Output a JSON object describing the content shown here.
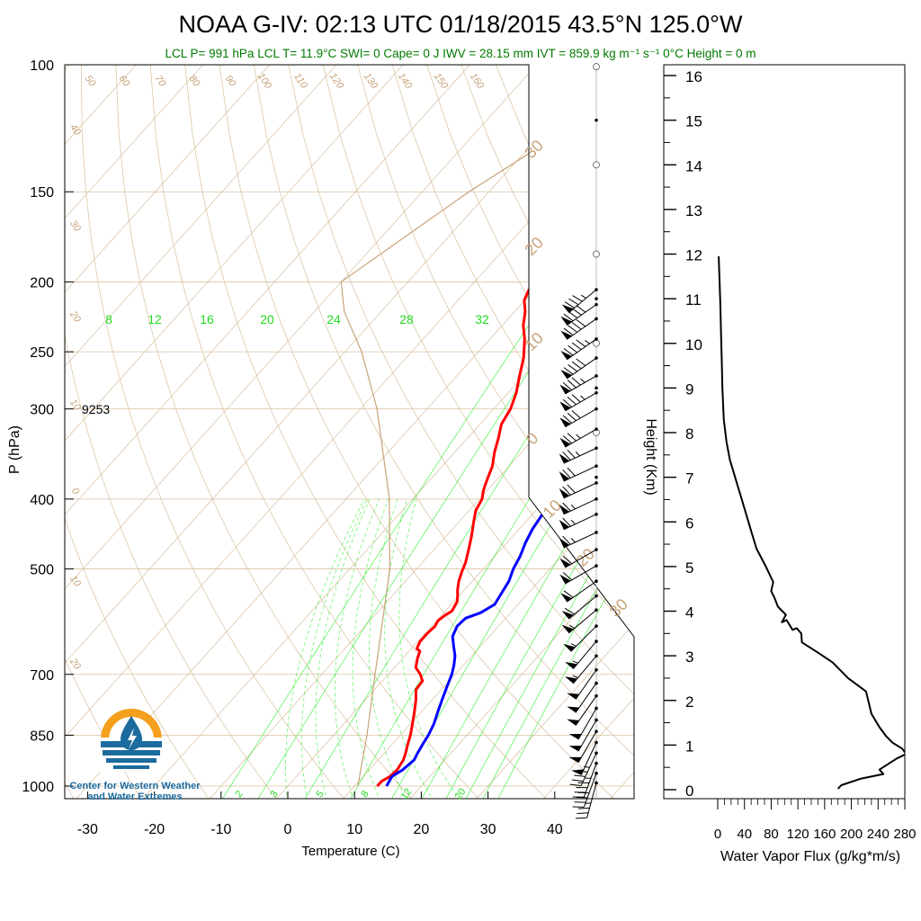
{
  "title": "NOAA G-IV: 02:13 UTC 01/18/2015  43.5°N 125.0°W",
  "subtitle": "LCL P= 991 hPa  LCL T= 11.9°C  SWI= 0  Cape= 0 J  IWV = 28.15 mm  IVT = 859.9 kg m⁻¹ s⁻¹  0°C Height = 0 m",
  "station_label": "9253",
  "logo": {
    "line1": "Center for Western Weather",
    "line2": "and Water Extremes"
  },
  "colors": {
    "temperature": "#ff0000",
    "dewpoint": "#0000ff",
    "mixing_ratio": "#00ee00",
    "adiabats": "#d2b48c",
    "subtitle": "#007a00",
    "logo_orange": "#f4a01c",
    "logo_blue": "#1c6b9e"
  },
  "chart_data": [
    {
      "type": "line",
      "kind": "skew-T log-p",
      "xlabel": "Temperature (C)",
      "ylabel": "P (hPa)",
      "x_ticks": [
        -30,
        -20,
        -10,
        0,
        10,
        20,
        30,
        40
      ],
      "y_ticks": [
        100,
        150,
        200,
        250,
        300,
        400,
        500,
        700,
        850,
        1000
      ],
      "y_scale": "log",
      "ylim": [
        1050,
        100
      ],
      "mixing_ratio_labels_upper": [
        "8",
        "12",
        "16",
        "20",
        "24",
        "28",
        "32"
      ],
      "mixing_ratio_labels_lower": [
        "2",
        "3",
        "5",
        "8",
        "12",
        "20"
      ],
      "dry_adiabat_labels": [
        "50",
        "60",
        "70",
        "80",
        "90",
        "100",
        "110",
        "120",
        "130",
        "140",
        "150",
        "160"
      ],
      "left_labels": [
        "40",
        "30",
        "20",
        "10",
        "0",
        "10",
        "20"
      ],
      "right_labels": [
        "30",
        "20",
        "10",
        "0",
        "10",
        "20",
        "30"
      ],
      "series": [
        {
          "name": "Temperature",
          "p": [
            1000,
            985,
            970,
            950,
            920,
            900,
            880,
            850,
            820,
            790,
            760,
            735,
            715,
            700,
            685,
            665,
            650,
            645,
            630,
            615,
            600,
            590,
            580,
            572,
            565,
            555,
            545,
            535,
            520,
            505,
            490,
            470,
            450,
            430,
            415,
            400,
            390,
            380,
            360,
            345,
            330,
            315,
            300,
            285,
            270,
            255,
            240,
            230,
            220,
            212,
            205,
            200,
            195
          ],
          "t": [
            13.4,
            13.4,
            14.0,
            14.2,
            13.8,
            13.2,
            12.5,
            11.5,
            10.3,
            9.0,
            7.6,
            6.2,
            6.0,
            4.8,
            3.2,
            2.2,
            1.6,
            0.8,
            0.3,
            0.3,
            0.5,
            0.2,
            0.5,
            1.0,
            0.8,
            0.5,
            -0.2,
            -1.0,
            -2.0,
            -2.8,
            -3.5,
            -4.8,
            -6.2,
            -7.8,
            -9.0,
            -9.6,
            -10.5,
            -11.2,
            -12.5,
            -14.0,
            -15.3,
            -16.8,
            -17.5,
            -18.8,
            -20.6,
            -22.4,
            -24.8,
            -26.8,
            -28.4,
            -30.1,
            -30.8,
            -30.0,
            -27.0
          ]
        },
        {
          "name": "Dew point",
          "p": [
            1000,
            970,
            950,
            920,
            900,
            870,
            850,
            820,
            790,
            760,
            730,
            700,
            680,
            660,
            640,
            620,
            600,
            585,
            575,
            560,
            540,
            520,
            500,
            480,
            460,
            440,
            420,
            400,
            370,
            340,
            310,
            290,
            270,
            255,
            240,
            230,
            220,
            210,
            205,
            200,
            195
          ],
          "t": [
            14.8,
            14.3,
            15.0,
            15.4,
            15.0,
            14.5,
            14.2,
            13.5,
            12.5,
            11.5,
            10.5,
            9.5,
            8.6,
            7.5,
            6.0,
            4.5,
            3.8,
            4.0,
            5.5,
            6.5,
            6.0,
            5.5,
            4.5,
            3.8,
            2.8,
            2.0,
            1.5,
            0.8,
            -1.5,
            -3.5,
            -5.0,
            -6.8,
            -8.4,
            -10.0,
            -11.3,
            -11.6,
            -11.4,
            -11.0,
            -10.0,
            -8.8,
            -7.3
          ]
        },
        {
          "name": "Parcel",
          "p": [
            1000,
            850,
            700,
            500,
            400,
            300,
            250,
            220,
            200,
            150,
            120,
            100
          ],
          "t": [
            10.5,
            5.0,
            -2.0,
            -14.0,
            -23.5,
            -37.5,
            -47.5,
            -55.5,
            -60.0,
            -53.0,
            -46.0,
            -41.0
          ]
        }
      ]
    },
    {
      "type": "line",
      "kind": "wind profile",
      "ylabel": "Height (Km)",
      "y_ticks": [
        "0",
        "1",
        "2",
        "3",
        "4",
        "5",
        "6",
        "7",
        "8",
        "9",
        "10",
        "11",
        "12",
        "13",
        "14",
        "15",
        "16"
      ],
      "ylim": [
        -0.3,
        16.3
      ],
      "upper_marks_km": [
        16.2,
        15.0,
        14.0,
        12.0,
        11.0,
        10.0,
        9.0,
        8.0,
        7.0
      ],
      "barbs": [
        {
          "p": 205,
          "dir": 230,
          "speed": 85
        },
        {
          "p": 215,
          "dir": 235,
          "speed": 90
        },
        {
          "p": 225,
          "dir": 235,
          "speed": 90
        },
        {
          "p": 240,
          "dir": 235,
          "speed": 95
        },
        {
          "p": 255,
          "dir": 235,
          "speed": 90
        },
        {
          "p": 270,
          "dir": 240,
          "speed": 85
        },
        {
          "p": 285,
          "dir": 240,
          "speed": 85
        },
        {
          "p": 300,
          "dir": 240,
          "speed": 80
        },
        {
          "p": 320,
          "dir": 240,
          "speed": 75
        },
        {
          "p": 340,
          "dir": 245,
          "speed": 75
        },
        {
          "p": 360,
          "dir": 245,
          "speed": 70
        },
        {
          "p": 380,
          "dir": 245,
          "speed": 70
        },
        {
          "p": 400,
          "dir": 245,
          "speed": 65
        },
        {
          "p": 420,
          "dir": 245,
          "speed": 65
        },
        {
          "p": 445,
          "dir": 245,
          "speed": 65
        },
        {
          "p": 470,
          "dir": 240,
          "speed": 60
        },
        {
          "p": 495,
          "dir": 240,
          "speed": 60
        },
        {
          "p": 520,
          "dir": 235,
          "speed": 60
        },
        {
          "p": 545,
          "dir": 230,
          "speed": 60
        },
        {
          "p": 570,
          "dir": 230,
          "speed": 55
        },
        {
          "p": 600,
          "dir": 225,
          "speed": 55
        },
        {
          "p": 630,
          "dir": 220,
          "speed": 55
        },
        {
          "p": 660,
          "dir": 220,
          "speed": 55
        },
        {
          "p": 690,
          "dir": 215,
          "speed": 50
        },
        {
          "p": 720,
          "dir": 215,
          "speed": 50
        },
        {
          "p": 750,
          "dir": 215,
          "speed": 50
        },
        {
          "p": 780,
          "dir": 210,
          "speed": 50
        },
        {
          "p": 810,
          "dir": 210,
          "speed": 50
        },
        {
          "p": 840,
          "dir": 210,
          "speed": 50
        },
        {
          "p": 870,
          "dir": 205,
          "speed": 50
        },
        {
          "p": 900,
          "dir": 205,
          "speed": 45
        },
        {
          "p": 930,
          "dir": 200,
          "speed": 45
        },
        {
          "p": 960,
          "dir": 200,
          "speed": 40
        },
        {
          "p": 990,
          "dir": 195,
          "speed": 35
        }
      ]
    },
    {
      "type": "line",
      "kind": "vertical profile",
      "xlabel": "Water Vapor Flux (g/kg*m/s)",
      "ylabel": "Height (Km)",
      "x_ticks": [
        "0",
        "40",
        "80",
        "120",
        "160",
        "200",
        "240",
        "280"
      ],
      "xlim": [
        0,
        280
      ],
      "ylim": [
        -0.3,
        16.3
      ],
      "series": [
        {
          "name": "Water Vapor Flux",
          "x": [
            180,
            185,
            215,
            248,
            242,
            268,
            282,
            276,
            262,
            252,
            242,
            230,
            222,
            195,
            172,
            152,
            126,
            125,
            118,
            112,
            103,
            96,
            102,
            90,
            85,
            80,
            83,
            72,
            58,
            50,
            42,
            34,
            26,
            18,
            13,
            9,
            7,
            6,
            5,
            4,
            3,
            2,
            1.5
          ],
          "y": [
            0.02,
            0.1,
            0.25,
            0.35,
            0.45,
            0.7,
            0.8,
            0.92,
            1.05,
            1.2,
            1.4,
            1.7,
            2.2,
            2.5,
            2.85,
            3.05,
            3.3,
            3.5,
            3.62,
            3.58,
            3.8,
            3.75,
            3.92,
            4.1,
            4.3,
            4.45,
            4.65,
            5.0,
            5.4,
            5.8,
            6.2,
            6.6,
            7.0,
            7.4,
            7.8,
            8.3,
            9.0,
            9.6,
            10.2,
            10.8,
            11.3,
            11.7,
            11.95
          ]
        }
      ]
    }
  ]
}
